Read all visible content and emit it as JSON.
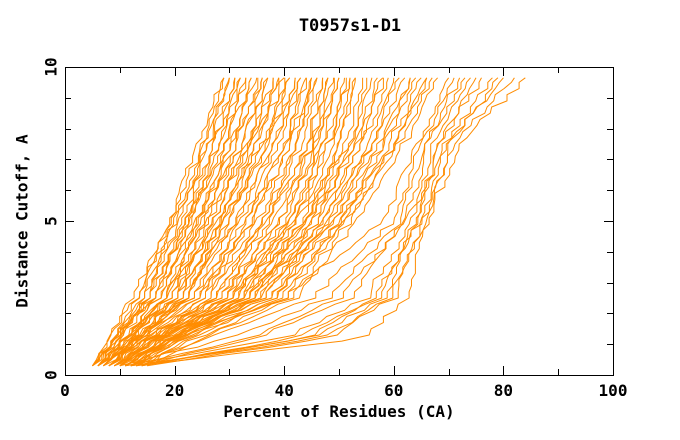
{
  "chart_data": {
    "type": "line",
    "title": "T0957s1-D1",
    "xlabel": "Percent of Residues (CA)",
    "ylabel": "Distance Cutoff, A",
    "xlim": [
      0,
      100
    ],
    "ylim": [
      0,
      10
    ],
    "grid": false,
    "legend": null,
    "line_color": "#ff8c00",
    "axis_color": "#000000",
    "x_ticks": {
      "major": [
        0,
        20,
        40,
        60,
        80,
        100
      ],
      "minor": [
        10,
        30,
        50,
        70,
        90
      ]
    },
    "y_ticks": {
      "major": [
        0,
        5,
        10
      ],
      "minor": [
        1,
        2,
        3,
        4,
        6,
        7,
        8,
        9
      ]
    },
    "cutoff_grid": [
      0.3,
      1.2,
      2.5,
      5,
      7.5,
      9.65
    ],
    "series": [
      [
        5,
        8,
        13,
        20,
        25,
        29
      ],
      [
        5,
        9,
        14,
        21,
        26,
        30
      ],
      [
        6,
        9,
        14,
        20,
        26,
        31
      ],
      [
        5,
        9,
        15,
        22,
        27,
        31
      ],
      [
        6,
        10,
        15,
        21,
        27,
        32
      ],
      [
        5,
        9,
        16,
        22,
        28,
        32
      ],
      [
        6,
        10,
        16,
        23,
        28,
        33
      ],
      [
        7,
        10,
        15,
        22,
        29,
        33
      ],
      [
        6,
        11,
        17,
        23,
        29,
        34
      ],
      [
        5,
        10,
        16,
        24,
        30,
        34
      ],
      [
        7,
        11,
        17,
        24,
        30,
        35
      ],
      [
        6,
        11,
        18,
        25,
        31,
        35
      ],
      [
        7,
        12,
        18,
        24,
        31,
        36
      ],
      [
        6,
        11,
        19,
        26,
        32,
        36
      ],
      [
        8,
        12,
        18,
        25,
        32,
        37
      ],
      [
        7,
        12,
        19,
        26,
        33,
        37
      ],
      [
        6,
        12,
        20,
        27,
        33,
        38
      ],
      [
        8,
        13,
        20,
        27,
        34,
        38
      ],
      [
        7,
        13,
        21,
        28,
        34,
        39
      ],
      [
        8,
        13,
        21,
        28,
        35,
        39
      ],
      [
        7,
        14,
        22,
        29,
        35,
        40
      ],
      [
        8,
        14,
        22,
        30,
        36,
        40
      ],
      [
        5,
        8,
        12,
        19,
        24,
        29
      ],
      [
        6,
        9,
        13,
        19,
        25,
        30
      ],
      [
        6,
        11,
        18,
        28,
        36,
        41
      ],
      [
        7,
        12,
        20,
        29,
        37,
        41
      ],
      [
        8,
        13,
        22,
        30,
        37,
        42
      ],
      [
        7,
        13,
        23,
        31,
        38,
        42
      ],
      [
        9,
        14,
        22,
        31,
        38,
        43
      ],
      [
        8,
        14,
        24,
        32,
        39,
        43
      ],
      [
        7,
        13,
        23,
        33,
        40,
        44
      ],
      [
        9,
        15,
        25,
        33,
        40,
        44
      ],
      [
        8,
        14,
        24,
        34,
        41,
        45
      ],
      [
        10,
        16,
        26,
        34,
        41,
        45
      ],
      [
        8,
        15,
        25,
        35,
        42,
        46
      ],
      [
        9,
        16,
        27,
        36,
        42,
        46
      ],
      [
        10,
        17,
        26,
        36,
        43,
        47
      ],
      [
        9,
        16,
        28,
        37,
        44,
        47
      ],
      [
        8,
        15,
        27,
        37,
        44,
        48
      ],
      [
        10,
        17,
        29,
        38,
        45,
        48
      ],
      [
        9,
        16,
        28,
        39,
        45,
        49
      ],
      [
        11,
        18,
        30,
        39,
        46,
        49
      ],
      [
        10,
        17,
        29,
        40,
        46,
        50
      ],
      [
        9,
        17,
        31,
        41,
        47,
        50
      ],
      [
        11,
        18,
        30,
        41,
        47,
        51
      ],
      [
        10,
        18,
        32,
        42,
        48,
        51
      ],
      [
        11,
        19,
        31,
        42,
        48,
        52
      ],
      [
        10,
        18,
        33,
        43,
        49,
        52
      ],
      [
        12,
        20,
        32,
        44,
        50,
        53
      ],
      [
        11,
        19,
        34,
        44,
        50,
        53
      ],
      [
        12,
        20,
        33,
        45,
        51,
        54
      ],
      [
        11,
        20,
        35,
        46,
        52,
        55
      ],
      [
        9,
        15,
        30,
        42,
        52,
        56
      ],
      [
        12,
        20,
        34,
        45,
        53,
        57
      ],
      [
        10,
        17,
        32,
        44,
        53,
        58
      ],
      [
        13,
        21,
        36,
        47,
        54,
        58
      ],
      [
        11,
        18,
        33,
        46,
        54,
        59
      ],
      [
        12,
        20,
        37,
        48,
        55,
        60
      ],
      [
        10,
        17,
        34,
        47,
        56,
        61
      ],
      [
        13,
        22,
        38,
        49,
        56,
        62
      ],
      [
        11,
        19,
        36,
        48,
        57,
        63
      ],
      [
        14,
        23,
        39,
        50,
        58,
        63
      ],
      [
        12,
        20,
        35,
        49,
        58,
        64
      ],
      [
        13,
        22,
        40,
        51,
        59,
        65
      ],
      [
        11,
        19,
        37,
        50,
        60,
        66
      ],
      [
        14,
        24,
        41,
        52,
        60,
        66
      ],
      [
        12,
        21,
        38,
        51,
        61,
        67
      ],
      [
        15,
        25,
        42,
        53,
        62,
        68
      ],
      [
        9,
        20,
        40,
        58,
        64,
        70
      ],
      [
        12,
        26,
        45,
        60,
        65,
        71
      ],
      [
        10,
        30,
        48,
        61,
        66,
        72
      ],
      [
        13,
        35,
        52,
        62,
        66,
        73
      ],
      [
        11,
        40,
        55,
        63,
        67,
        74
      ],
      [
        14,
        42,
        57,
        64,
        68,
        75
      ],
      [
        12,
        45,
        58,
        64,
        68,
        76
      ],
      [
        15,
        48,
        60,
        65,
        69,
        78
      ],
      [
        13,
        55,
        62,
        66,
        70,
        79
      ],
      [
        11,
        34,
        50,
        62,
        70,
        80
      ],
      [
        14,
        44,
        56,
        65,
        71,
        82
      ],
      [
        12,
        47,
        59,
        66,
        72,
        84
      ]
    ]
  }
}
